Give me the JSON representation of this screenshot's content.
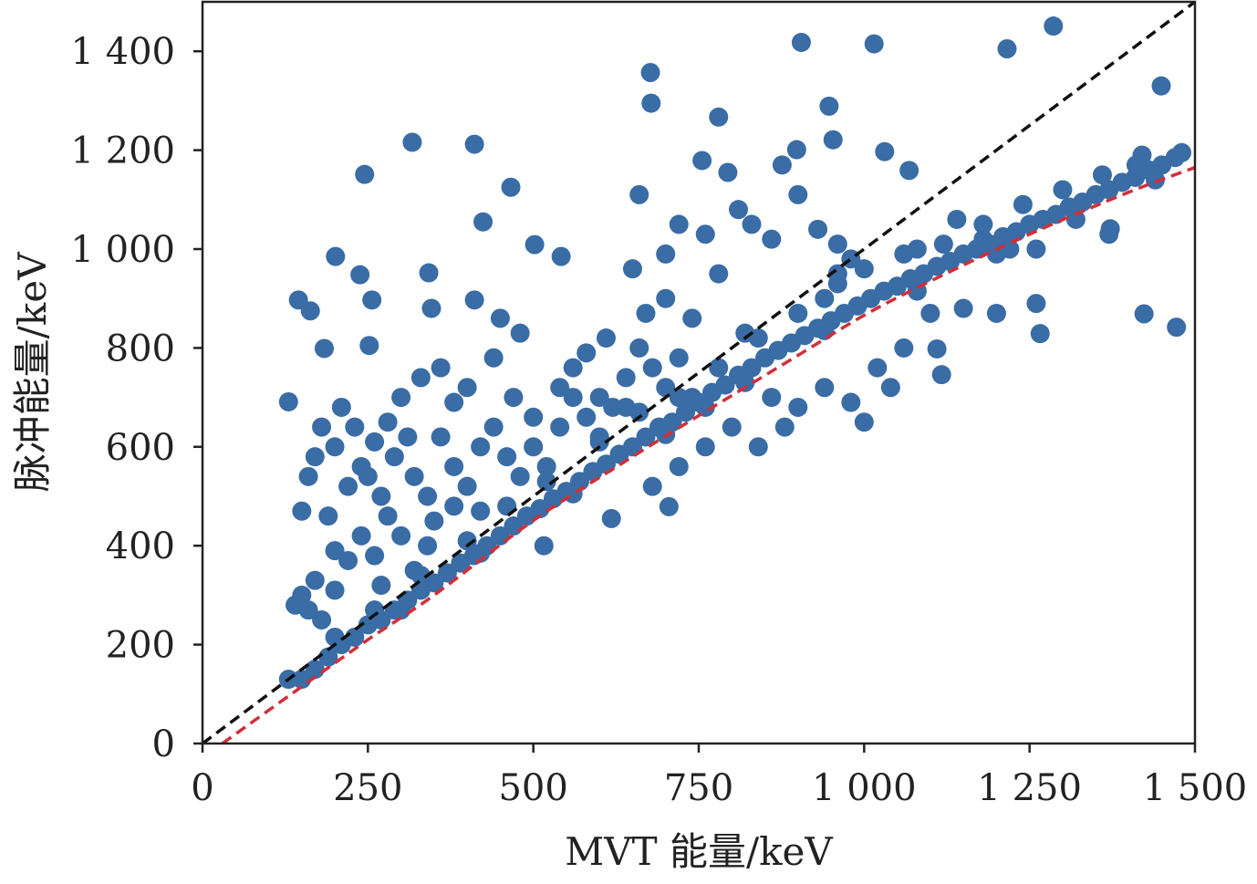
{
  "chart_data": {
    "type": "scatter",
    "title": "",
    "xlabel": "MVT 能量/keV",
    "ylabel": "脉冲能量/keV",
    "xlim": [
      0,
      1500
    ],
    "ylim": [
      0,
      1500
    ],
    "xticks": [
      0,
      250,
      500,
      750,
      1000,
      1250,
      1500
    ],
    "xtick_labels": [
      "0",
      "250",
      "500",
      "750",
      "1 000",
      "1 250",
      "1 500"
    ],
    "yticks": [
      0,
      200,
      400,
      600,
      800,
      1000,
      1200,
      1400
    ],
    "ytick_labels": [
      "0",
      "200",
      "400",
      "600",
      "800",
      "1 000",
      "1 200",
      "1 400"
    ],
    "grid": false,
    "colors": {
      "points": "#3a6ca5",
      "identity_line": "#111111",
      "fit_line": "#d0303a"
    },
    "reference_line": {
      "name": "y = x",
      "style": "dashed",
      "points": [
        [
          0,
          0
        ],
        [
          1500,
          1500
        ]
      ]
    },
    "fit_curve": {
      "style": "dashed",
      "points": [
        [
          30,
          0
        ],
        [
          150,
          115
        ],
        [
          250,
          210
        ],
        [
          350,
          300
        ],
        [
          500,
          451
        ],
        [
          650,
          580
        ],
        [
          750,
          663
        ],
        [
          900,
          785
        ],
        [
          1000,
          866
        ],
        [
          1100,
          935
        ],
        [
          1250,
          1030
        ],
        [
          1400,
          1115
        ],
        [
          1500,
          1165
        ]
      ]
    },
    "points": [
      [
        1286,
        1451
      ],
      [
        905,
        1418
      ],
      [
        1015,
        1415
      ],
      [
        1216,
        1405
      ],
      [
        1449,
        1330
      ],
      [
        677,
        1357
      ],
      [
        678,
        1295
      ],
      [
        780,
        1267
      ],
      [
        947,
        1289
      ],
      [
        317,
        1216
      ],
      [
        411,
        1212
      ],
      [
        245,
        1151
      ],
      [
        953,
        1221
      ],
      [
        898,
        1201
      ],
      [
        1031,
        1197
      ],
      [
        755,
        1179
      ],
      [
        1068,
        1159
      ],
      [
        876,
        1170
      ],
      [
        794,
        1155
      ],
      [
        466,
        1125
      ],
      [
        424,
        1055
      ],
      [
        502,
        1009
      ],
      [
        542,
        985
      ],
      [
        201,
        985
      ],
      [
        238,
        948
      ],
      [
        342,
        952
      ],
      [
        145,
        897
      ],
      [
        256,
        897
      ],
      [
        411,
        897
      ],
      [
        163,
        875
      ],
      [
        346,
        880
      ],
      [
        184,
        799
      ],
      [
        252,
        805
      ],
      [
        130,
        691
      ],
      [
        1423,
        869
      ],
      [
        1472,
        842
      ],
      [
        1266,
        829
      ],
      [
        1411,
        1170
      ],
      [
        1372,
        1041
      ],
      [
        1110,
        798
      ],
      [
        1117,
        746
      ],
      [
        705,
        479
      ],
      [
        516,
        400
      ],
      [
        618,
        455
      ],
      [
        660,
        1110
      ],
      [
        700,
        990
      ],
      [
        650,
        960
      ],
      [
        720,
        1050
      ],
      [
        760,
        1030
      ],
      [
        810,
        1080
      ],
      [
        830,
        1050
      ],
      [
        860,
        1020
      ],
      [
        900,
        1110
      ],
      [
        930,
        1040
      ],
      [
        960,
        1010
      ],
      [
        700,
        900
      ],
      [
        670,
        870
      ],
      [
        740,
        860
      ],
      [
        780,
        950
      ],
      [
        820,
        830
      ],
      [
        610,
        820
      ],
      [
        580,
        790
      ],
      [
        560,
        760
      ],
      [
        540,
        720
      ],
      [
        600,
        700
      ],
      [
        640,
        680
      ],
      [
        500,
        660
      ],
      [
        470,
        700
      ],
      [
        440,
        780
      ],
      [
        450,
        860
      ],
      [
        480,
        830
      ],
      [
        400,
        720
      ],
      [
        380,
        690
      ],
      [
        360,
        760
      ],
      [
        330,
        740
      ],
      [
        300,
        700
      ],
      [
        280,
        650
      ],
      [
        260,
        610
      ],
      [
        240,
        560
      ],
      [
        220,
        520
      ],
      [
        200,
        600
      ],
      [
        180,
        640
      ],
      [
        170,
        580
      ],
      [
        160,
        540
      ],
      [
        150,
        470
      ],
      [
        190,
        460
      ],
      [
        210,
        680
      ],
      [
        230,
        640
      ],
      [
        250,
        540
      ],
      [
        270,
        500
      ],
      [
        290,
        580
      ],
      [
        310,
        620
      ],
      [
        320,
        540
      ],
      [
        340,
        500
      ],
      [
        360,
        620
      ],
      [
        380,
        560
      ],
      [
        400,
        520
      ],
      [
        420,
        600
      ],
      [
        440,
        640
      ],
      [
        460,
        580
      ],
      [
        480,
        540
      ],
      [
        500,
        600
      ],
      [
        520,
        560
      ],
      [
        540,
        640
      ],
      [
        560,
        700
      ],
      [
        580,
        660
      ],
      [
        600,
        620
      ],
      [
        620,
        680
      ],
      [
        640,
        740
      ],
      [
        660,
        800
      ],
      [
        680,
        760
      ],
      [
        700,
        720
      ],
      [
        720,
        780
      ],
      [
        740,
        700
      ],
      [
        760,
        680
      ],
      [
        150,
        300
      ],
      [
        160,
        270
      ],
      [
        170,
        330
      ],
      [
        180,
        250
      ],
      [
        200,
        310
      ],
      [
        220,
        370
      ],
      [
        240,
        420
      ],
      [
        260,
        380
      ],
      [
        280,
        460
      ],
      [
        300,
        420
      ],
      [
        320,
        350
      ],
      [
        340,
        400
      ],
      [
        200,
        390
      ],
      [
        270,
        320
      ],
      [
        140,
        280
      ],
      [
        350,
        450
      ],
      [
        380,
        480
      ],
      [
        420,
        470
      ],
      [
        130,
        130
      ],
      [
        150,
        130
      ],
      [
        170,
        150
      ],
      [
        190,
        175
      ],
      [
        210,
        200
      ],
      [
        230,
        215
      ],
      [
        250,
        240
      ],
      [
        270,
        250
      ],
      [
        290,
        270
      ],
      [
        310,
        290
      ],
      [
        330,
        310
      ],
      [
        350,
        325
      ],
      [
        370,
        345
      ],
      [
        390,
        365
      ],
      [
        410,
        380
      ],
      [
        430,
        400
      ],
      [
        450,
        420
      ],
      [
        470,
        440
      ],
      [
        490,
        460
      ],
      [
        510,
        475
      ],
      [
        530,
        495
      ],
      [
        550,
        510
      ],
      [
        570,
        530
      ],
      [
        590,
        550
      ],
      [
        610,
        565
      ],
      [
        630,
        585
      ],
      [
        650,
        600
      ],
      [
        670,
        620
      ],
      [
        690,
        640
      ],
      [
        710,
        650
      ],
      [
        730,
        670
      ],
      [
        750,
        690
      ],
      [
        770,
        710
      ],
      [
        790,
        725
      ],
      [
        810,
        745
      ],
      [
        830,
        760
      ],
      [
        850,
        780
      ],
      [
        870,
        795
      ],
      [
        890,
        810
      ],
      [
        910,
        825
      ],
      [
        930,
        840
      ],
      [
        950,
        855
      ],
      [
        970,
        870
      ],
      [
        990,
        885
      ],
      [
        1010,
        900
      ],
      [
        1030,
        915
      ],
      [
        1050,
        925
      ],
      [
        1070,
        940
      ],
      [
        1090,
        950
      ],
      [
        1110,
        965
      ],
      [
        1130,
        975
      ],
      [
        1150,
        990
      ],
      [
        1170,
        1000
      ],
      [
        1190,
        1010
      ],
      [
        1210,
        1025
      ],
      [
        1230,
        1035
      ],
      [
        1250,
        1050
      ],
      [
        1270,
        1060
      ],
      [
        1290,
        1070
      ],
      [
        1310,
        1085
      ],
      [
        1330,
        1095
      ],
      [
        1350,
        1110
      ],
      [
        1370,
        1120
      ],
      [
        1390,
        1135
      ],
      [
        1410,
        1145
      ],
      [
        1430,
        1160
      ],
      [
        1450,
        1170
      ],
      [
        1470,
        1185
      ],
      [
        1480,
        1195
      ],
      [
        200,
        215
      ],
      [
        260,
        270
      ],
      [
        330,
        340
      ],
      [
        400,
        410
      ],
      [
        460,
        480
      ],
      [
        520,
        530
      ],
      [
        600,
        610
      ],
      [
        660,
        670
      ],
      [
        720,
        700
      ],
      [
        780,
        760
      ],
      [
        840,
        820
      ],
      [
        900,
        870
      ],
      [
        960,
        930
      ],
      [
        1000,
        960
      ],
      [
        1060,
        990
      ],
      [
        1120,
        1010
      ],
      [
        1180,
        1050
      ],
      [
        1240,
        1090
      ],
      [
        1300,
        1120
      ],
      [
        1360,
        1150
      ],
      [
        1420,
        1190
      ],
      [
        300,
        270
      ],
      [
        420,
        385
      ],
      [
        560,
        505
      ],
      [
        700,
        625
      ],
      [
        820,
        730
      ],
      [
        940,
        835
      ],
      [
        1080,
        915
      ],
      [
        1200,
        990
      ],
      [
        1320,
        1060
      ],
      [
        1440,
        1140
      ],
      [
        860,
        700
      ],
      [
        900,
        680
      ],
      [
        940,
        720
      ],
      [
        980,
        690
      ],
      [
        1020,
        760
      ],
      [
        1060,
        800
      ],
      [
        1100,
        870
      ],
      [
        1150,
        880
      ],
      [
        1200,
        870
      ],
      [
        800,
        640
      ],
      [
        760,
        600
      ],
      [
        720,
        560
      ],
      [
        680,
        520
      ],
      [
        880,
        640
      ],
      [
        840,
        600
      ],
      [
        1260,
        890
      ],
      [
        1370,
        1030
      ],
      [
        1000,
        650
      ],
      [
        1040,
        720
      ],
      [
        1080,
        1000
      ],
      [
        1140,
        1060
      ],
      [
        1180,
        1020
      ],
      [
        1220,
        1000
      ],
      [
        1260,
        1000
      ],
      [
        980,
        980
      ],
      [
        940,
        900
      ],
      [
        960,
        950
      ]
    ]
  }
}
